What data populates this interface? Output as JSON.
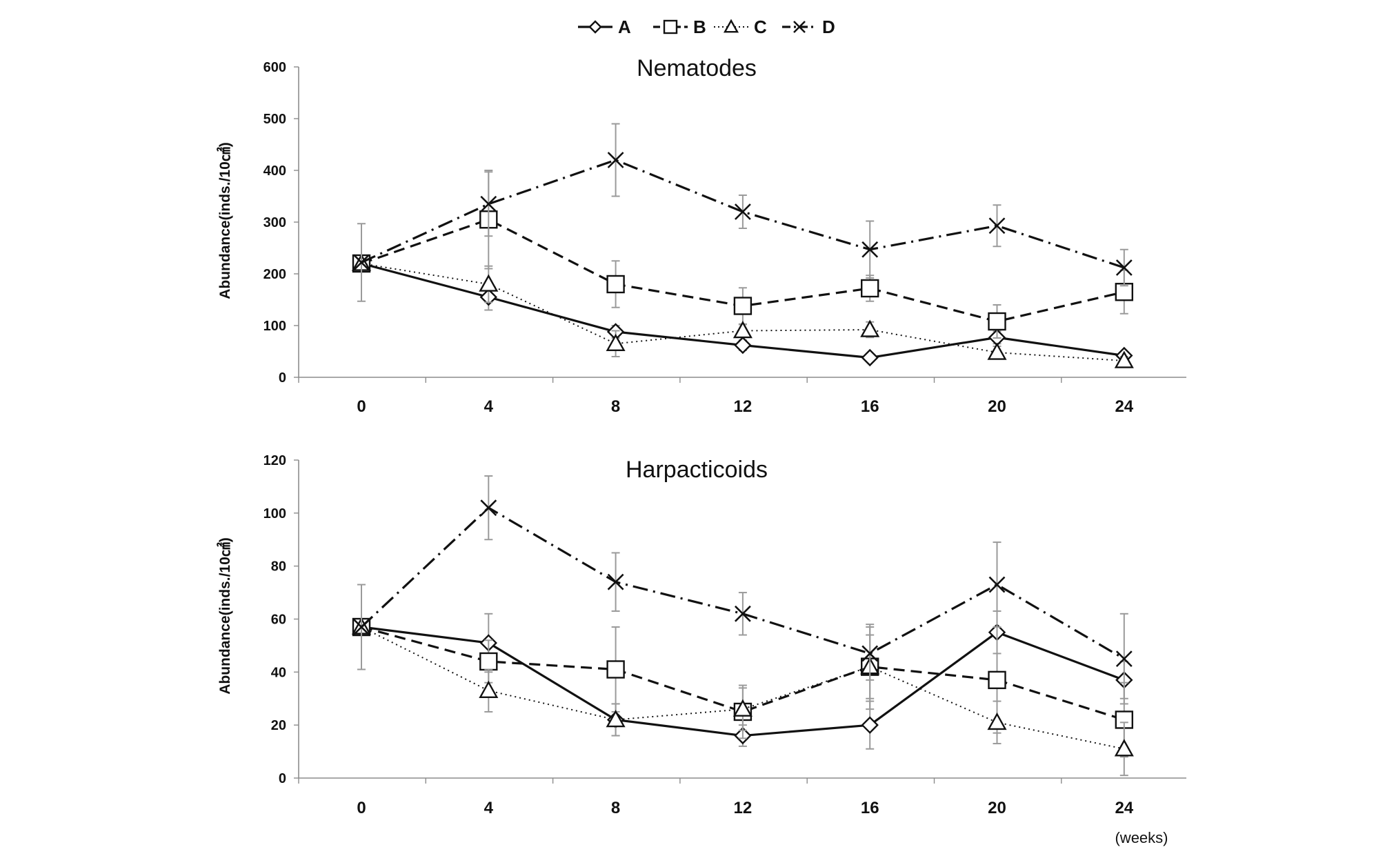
{
  "legend": [
    {
      "name": "A",
      "marker": "diamond",
      "dash": "solid"
    },
    {
      "name": "B",
      "marker": "square",
      "dash": "dashed"
    },
    {
      "name": "C",
      "marker": "triangle",
      "dash": "dotted"
    },
    {
      "name": "D",
      "marker": "x",
      "dash": "dashdot"
    }
  ],
  "x_unit_label": "(weeks)",
  "colors": {
    "lines": "#111111",
    "error_bars": "#9a9a9a",
    "axes": "#8c8c8c"
  },
  "chart_data": [
    {
      "type": "line",
      "title": "Nematodes",
      "xlabel": "",
      "ylabel": "Abundance(inds./10㎠)",
      "x": [
        0,
        4,
        8,
        12,
        16,
        20,
        24
      ],
      "ylim": [
        0,
        600
      ],
      "yticks": [
        0,
        100,
        200,
        300,
        400,
        500,
        600
      ],
      "series": [
        {
          "name": "A",
          "values": [
            220,
            155,
            88,
            62,
            38,
            77,
            42
          ],
          "errors": [
            0,
            25,
            12,
            10,
            8,
            12,
            6
          ]
        },
        {
          "name": "B",
          "values": [
            220,
            305,
            180,
            138,
            172,
            108,
            165
          ],
          "errors": [
            0,
            95,
            45,
            35,
            25,
            32,
            42
          ]
        },
        {
          "name": "C",
          "values": [
            220,
            180,
            65,
            90,
            92,
            48,
            32
          ],
          "errors": [
            0,
            35,
            25,
            12,
            15,
            12,
            8
          ]
        },
        {
          "name": "D",
          "values": [
            222,
            335,
            420,
            320,
            247,
            293,
            212
          ],
          "errors": [
            75,
            62,
            70,
            32,
            55,
            40,
            35
          ]
        }
      ]
    },
    {
      "type": "line",
      "title": "Harpacticoids",
      "xlabel": "",
      "ylabel": "Abundance(inds./10㎠)",
      "x": [
        0,
        4,
        8,
        12,
        16,
        20,
        24
      ],
      "ylim": [
        0,
        120
      ],
      "yticks": [
        0,
        20,
        40,
        60,
        80,
        100,
        120
      ],
      "series": [
        {
          "name": "A",
          "values": [
            57,
            51,
            22,
            16,
            20,
            55,
            37
          ],
          "errors": [
            0,
            11,
            6,
            4,
            9,
            8,
            7
          ]
        },
        {
          "name": "B",
          "values": [
            57,
            44,
            41,
            25,
            42,
            37,
            22
          ],
          "errors": [
            0,
            8,
            16,
            10,
            16,
            20,
            14
          ]
        },
        {
          "name": "C",
          "values": [
            57,
            33,
            22,
            26,
            42,
            21,
            11
          ],
          "errors": [
            0,
            8,
            6,
            8,
            12,
            8,
            10
          ]
        },
        {
          "name": "D",
          "values": [
            57,
            102,
            74,
            62,
            47,
            73,
            45
          ],
          "errors": [
            16,
            12,
            11,
            8,
            10,
            16,
            17
          ]
        }
      ]
    }
  ]
}
